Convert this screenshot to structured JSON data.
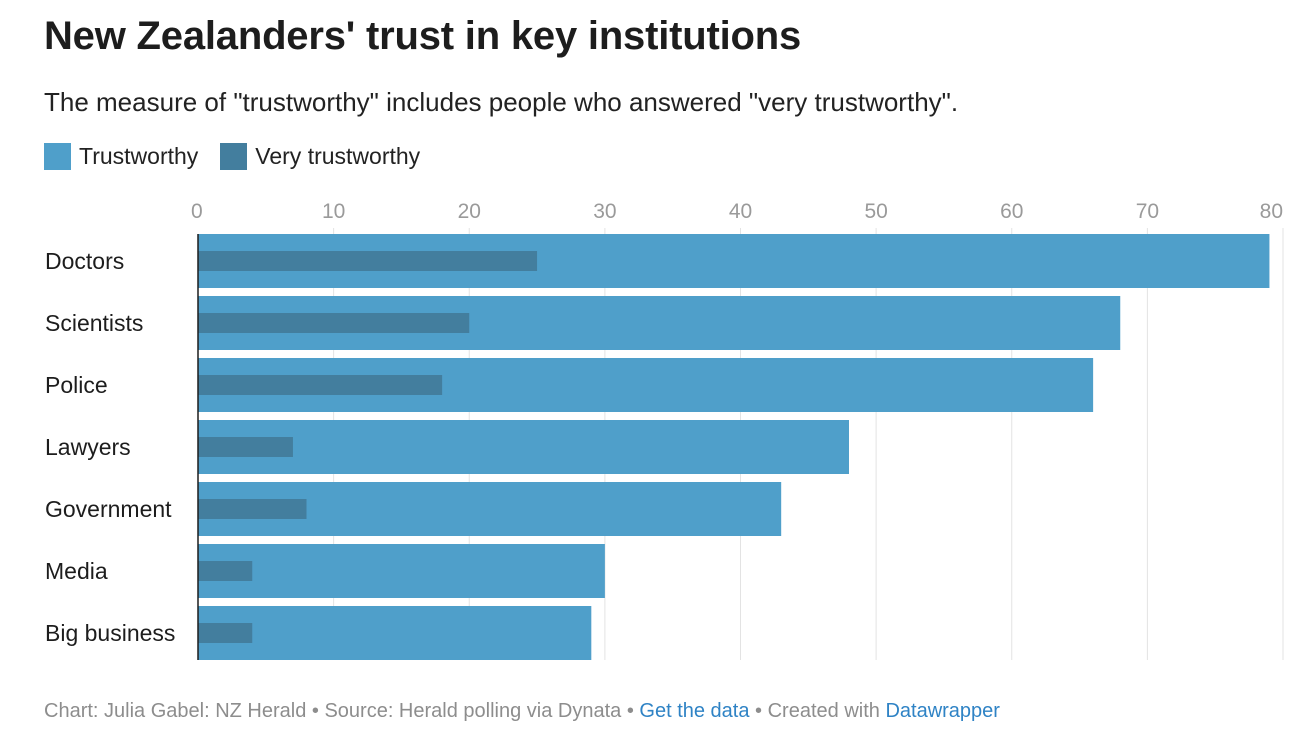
{
  "title": "New Zealanders' trust in key institutions",
  "subtitle": "The measure of \"trustworthy\" includes people who answered \"very trustworthy\".",
  "legend": [
    {
      "label": "Trustworthy",
      "color": "#4f9fca"
    },
    {
      "label": "Very trustworthy",
      "color": "#437e9e"
    }
  ],
  "footer": {
    "chart_credit": "Chart: Julia Gabel: NZ Herald",
    "separator": " • ",
    "source": "Source: Herald polling via Dynata",
    "get_data": "Get the data",
    "created_with": "Created with",
    "tool": "Datawrapper"
  },
  "chart_data": {
    "type": "bar",
    "orientation": "horizontal",
    "title": "New Zealanders' trust in key institutions",
    "categories": [
      "Doctors",
      "Scientists",
      "Police",
      "Lawyers",
      "Government",
      "Media",
      "Big business"
    ],
    "series": [
      {
        "name": "Trustworthy",
        "color": "#4f9fca",
        "values": [
          79,
          68,
          66,
          48,
          43,
          30,
          29
        ]
      },
      {
        "name": "Very trustworthy",
        "color": "#437e9e",
        "values": [
          25,
          20,
          18,
          7,
          8,
          4,
          4
        ]
      }
    ],
    "xlim": [
      0,
      80
    ],
    "xticks": [
      0,
      10,
      20,
      30,
      40,
      50,
      60,
      70,
      80
    ],
    "grid": true,
    "legend_position": "top-left"
  }
}
